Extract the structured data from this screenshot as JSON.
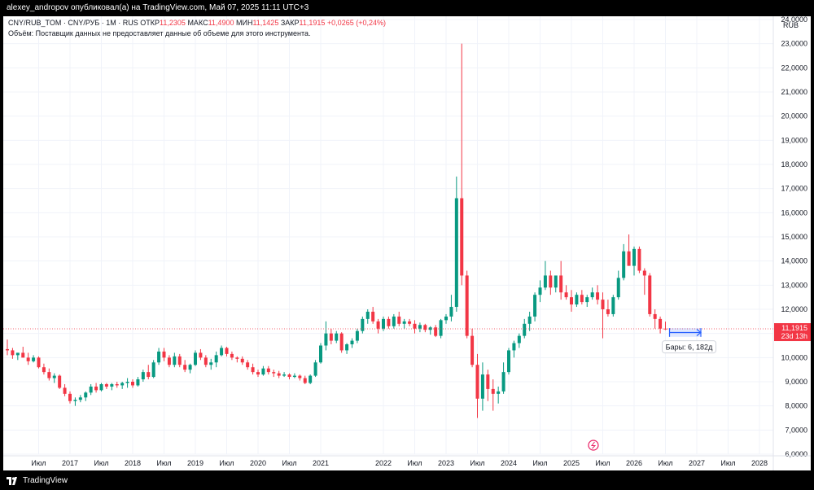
{
  "header": {
    "publisher_line": "alexey_andropov опубликовал(а) на TradingView.com, Май 07, 2025 11:11 UTC+3"
  },
  "legend": {
    "symbol": "CNY/RUB_TOM · CNY/РУБ · 1М · RUS",
    "open_label": "ОТКР",
    "open_value": "11,2305",
    "high_label": "МАКС",
    "high_value": "11,4900",
    "low_label": "МИН",
    "low_value": "11,1425",
    "close_label": "ЗАКР",
    "close_value": "11,1915",
    "change": "+0,0265 (+0,24%)",
    "volume_note": "Объём: Поставщик данных не предоставляет данные об объеме для этого инструмента."
  },
  "price_axis": {
    "currency": "RUB",
    "current_price": "11,1915",
    "countdown": "23d 13h"
  },
  "measure_label": "Бары: 6, 182д",
  "footer": {
    "brand": "TradingView"
  },
  "colors": {
    "up": "#089981",
    "down": "#f23645",
    "measure": "#2962ff"
  },
  "chart_data": {
    "type": "candlestick",
    "interval": "1M",
    "ylim": [
      6,
      24
    ],
    "y_ticks": [
      "6,0000",
      "7,0000",
      "8,0000",
      "9,0000",
      "10,0000",
      "11,0000",
      "12,0000",
      "13,0000",
      "14,0000",
      "15,0000",
      "16,0000",
      "17,0000",
      "18,0000",
      "19,0000",
      "20,0000",
      "21,0000",
      "22,0000",
      "23,0000",
      "24,0000"
    ],
    "x_tick_labels": [
      "Июл",
      "2017",
      "Июл",
      "2018",
      "Июл",
      "2019",
      "Июл",
      "2020",
      "Июл",
      "2021",
      "2022",
      "Июл",
      "2023",
      "Июл",
      "2024",
      "Июл",
      "2025",
      "Июл",
      "2026",
      "Июл",
      "2027",
      "Июл",
      "2028"
    ],
    "x_tick_positions": [
      2016.5,
      2017,
      2017.5,
      2018,
      2018.5,
      2019,
      2019.5,
      2020,
      2020.5,
      2021,
      2022,
      2022.5,
      2023,
      2023.5,
      2024,
      2024.5,
      2025,
      2025.5,
      2026,
      2026.5,
      2027,
      2027.5,
      2028
    ],
    "start": 2016.0,
    "month_step": 0.0833333,
    "ohlc": [
      [
        10.35,
        10.75,
        10.1,
        10.3
      ],
      [
        10.3,
        10.4,
        9.95,
        10.1
      ],
      [
        10.1,
        10.2,
        9.9,
        10.2
      ],
      [
        10.2,
        10.45,
        10.0,
        10.0
      ],
      [
        10.0,
        10.2,
        9.7,
        9.85
      ],
      [
        9.85,
        10.1,
        9.8,
        10.0
      ],
      [
        10.0,
        10.05,
        9.55,
        9.6
      ],
      [
        9.6,
        9.75,
        9.3,
        9.4
      ],
      [
        9.4,
        9.55,
        9.05,
        9.15
      ],
      [
        9.15,
        9.35,
        8.95,
        9.25
      ],
      [
        9.25,
        9.3,
        8.7,
        8.75
      ],
      [
        8.75,
        8.9,
        8.4,
        8.5
      ],
      [
        8.5,
        8.6,
        8.1,
        8.2
      ],
      [
        8.2,
        8.35,
        8.0,
        8.25
      ],
      [
        8.25,
        8.45,
        8.15,
        8.35
      ],
      [
        8.35,
        8.6,
        8.2,
        8.55
      ],
      [
        8.55,
        8.9,
        8.45,
        8.8
      ],
      [
        8.8,
        8.95,
        8.55,
        8.65
      ],
      [
        8.65,
        8.95,
        8.6,
        8.9
      ],
      [
        8.9,
        8.95,
        8.7,
        8.8
      ],
      [
        8.8,
        8.95,
        8.65,
        8.9
      ],
      [
        8.9,
        9.0,
        8.75,
        8.85
      ],
      [
        8.85,
        9.0,
        8.7,
        8.95
      ],
      [
        8.95,
        9.15,
        8.75,
        9.0
      ],
      [
        9.0,
        9.1,
        8.75,
        8.85
      ],
      [
        8.85,
        9.2,
        8.8,
        9.1
      ],
      [
        9.1,
        9.5,
        9.0,
        9.4
      ],
      [
        9.4,
        9.7,
        9.1,
        9.2
      ],
      [
        9.2,
        9.9,
        9.15,
        9.8
      ],
      [
        9.8,
        10.4,
        9.7,
        10.25
      ],
      [
        10.25,
        10.4,
        9.85,
        10.0
      ],
      [
        10.0,
        10.1,
        9.6,
        9.7
      ],
      [
        9.7,
        10.2,
        9.6,
        10.05
      ],
      [
        10.05,
        10.15,
        9.6,
        9.7
      ],
      [
        9.7,
        9.9,
        9.4,
        9.5
      ],
      [
        9.5,
        9.75,
        9.35,
        9.7
      ],
      [
        9.7,
        10.3,
        9.65,
        10.2
      ],
      [
        10.2,
        10.35,
        9.9,
        10.0
      ],
      [
        10.0,
        10.1,
        9.6,
        9.7
      ],
      [
        9.7,
        9.95,
        9.5,
        9.8
      ],
      [
        9.8,
        10.25,
        9.6,
        10.1
      ],
      [
        10.1,
        10.5,
        10.05,
        10.4
      ],
      [
        10.4,
        10.45,
        10.05,
        10.15
      ],
      [
        10.15,
        10.25,
        9.9,
        10.0
      ],
      [
        10.0,
        10.05,
        9.8,
        9.95
      ],
      [
        9.95,
        10.05,
        9.7,
        9.8
      ],
      [
        9.8,
        9.9,
        9.5,
        9.6
      ],
      [
        9.6,
        9.75,
        9.3,
        9.4
      ],
      [
        9.4,
        9.5,
        9.2,
        9.3
      ],
      [
        9.3,
        9.65,
        9.25,
        9.55
      ],
      [
        9.55,
        9.65,
        9.3,
        9.4
      ],
      [
        9.4,
        9.5,
        9.2,
        9.35
      ],
      [
        9.35,
        9.45,
        9.15,
        9.25
      ],
      [
        9.25,
        9.4,
        9.2,
        9.3
      ],
      [
        9.3,
        9.35,
        9.1,
        9.2
      ],
      [
        9.2,
        9.35,
        9.15,
        9.25
      ],
      [
        9.25,
        9.3,
        9.05,
        9.15
      ],
      [
        9.15,
        9.25,
        8.9,
        8.95
      ],
      [
        8.95,
        9.3,
        8.9,
        9.25
      ],
      [
        9.25,
        9.9,
        9.2,
        9.8
      ],
      [
        9.8,
        10.6,
        9.75,
        10.5
      ],
      [
        10.5,
        11.5,
        10.3,
        11.0
      ],
      [
        11.0,
        11.2,
        10.55,
        10.7
      ],
      [
        10.7,
        11.1,
        10.6,
        11.0
      ],
      [
        11.0,
        11.05,
        10.2,
        10.3
      ],
      [
        10.3,
        10.6,
        10.15,
        10.55
      ],
      [
        10.55,
        10.8,
        10.4,
        10.7
      ],
      [
        10.7,
        11.2,
        10.6,
        11.1
      ],
      [
        11.1,
        11.7,
        11.0,
        11.6
      ],
      [
        11.6,
        12.0,
        11.4,
        11.9
      ],
      [
        11.9,
        12.1,
        11.4,
        11.5
      ],
      [
        11.5,
        11.6,
        11.0,
        11.2
      ],
      [
        11.2,
        11.7,
        11.1,
        11.6
      ],
      [
        11.6,
        11.7,
        11.2,
        11.3
      ],
      [
        11.3,
        11.8,
        11.2,
        11.7
      ],
      [
        11.7,
        11.9,
        11.3,
        11.4
      ],
      [
        11.4,
        11.6,
        11.2,
        11.5
      ],
      [
        11.5,
        11.6,
        11.3,
        11.4
      ],
      [
        11.4,
        11.55,
        11.0,
        11.2
      ],
      [
        11.2,
        11.45,
        11.05,
        11.35
      ],
      [
        11.35,
        11.4,
        11.05,
        11.15
      ],
      [
        11.15,
        11.3,
        10.95,
        11.25
      ],
      [
        11.25,
        11.35,
        10.85,
        10.9
      ],
      [
        10.9,
        11.6,
        10.8,
        11.55
      ],
      [
        11.55,
        11.8,
        11.4,
        11.7
      ],
      [
        11.7,
        12.6,
        11.5,
        12.1
      ],
      [
        12.1,
        17.5,
        11.9,
        16.6
      ],
      [
        16.6,
        23.0,
        13.0,
        13.4
      ],
      [
        13.4,
        13.6,
        10.8,
        10.9
      ],
      [
        10.9,
        11.2,
        9.6,
        9.7
      ],
      [
        9.7,
        10.15,
        7.5,
        8.3
      ],
      [
        8.3,
        9.8,
        7.8,
        9.3
      ],
      [
        9.3,
        9.5,
        8.2,
        8.7
      ],
      [
        8.7,
        9.1,
        7.8,
        8.5
      ],
      [
        8.5,
        8.8,
        8.1,
        8.6
      ],
      [
        8.6,
        9.8,
        8.5,
        9.4
      ],
      [
        9.4,
        10.4,
        9.3,
        10.3
      ],
      [
        10.3,
        10.7,
        10.0,
        10.6
      ],
      [
        10.6,
        11.0,
        10.4,
        10.9
      ],
      [
        10.9,
        11.6,
        10.8,
        11.4
      ],
      [
        11.4,
        11.9,
        11.1,
        11.7
      ],
      [
        11.7,
        12.7,
        11.5,
        12.6
      ],
      [
        12.6,
        13.2,
        12.3,
        12.9
      ],
      [
        12.9,
        14.0,
        12.8,
        13.4
      ],
      [
        13.4,
        13.6,
        12.6,
        12.9
      ],
      [
        12.9,
        13.3,
        12.7,
        13.4
      ],
      [
        13.4,
        14.0,
        12.4,
        12.7
      ],
      [
        12.7,
        13.0,
        12.4,
        12.5
      ],
      [
        12.5,
        12.8,
        11.9,
        12.2
      ],
      [
        12.2,
        12.7,
        12.1,
        12.6
      ],
      [
        12.6,
        12.8,
        12.2,
        12.3
      ],
      [
        12.3,
        12.6,
        12.1,
        12.5
      ],
      [
        12.5,
        12.9,
        12.4,
        12.7
      ],
      [
        12.7,
        13.0,
        12.2,
        12.4
      ],
      [
        12.4,
        12.7,
        10.8,
        12.0
      ],
      [
        12.0,
        12.4,
        11.7,
        11.8
      ],
      [
        11.8,
        12.6,
        11.7,
        12.5
      ],
      [
        12.5,
        13.6,
        12.4,
        13.3
      ],
      [
        13.3,
        14.7,
        13.2,
        14.4
      ],
      [
        14.4,
        15.1,
        13.8,
        13.8
      ],
      [
        13.8,
        14.6,
        13.4,
        14.5
      ],
      [
        14.5,
        14.6,
        13.5,
        13.6
      ],
      [
        13.6,
        13.7,
        12.6,
        13.4
      ],
      [
        13.4,
        13.5,
        11.7,
        11.8
      ],
      [
        11.8,
        12.0,
        11.2,
        11.6
      ],
      [
        11.6,
        11.7,
        11.0,
        11.2
      ],
      [
        11.2,
        11.49,
        11.14,
        11.19
      ]
    ]
  }
}
